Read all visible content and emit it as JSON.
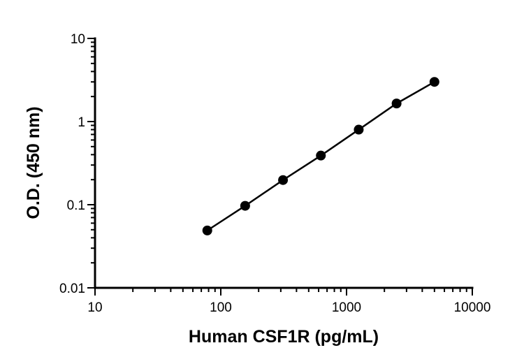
{
  "chart_data": {
    "type": "scatter",
    "title": "",
    "xlabel": "Human CSF1R (pg/mL)",
    "ylabel": "O.D. (450 nm)",
    "xscale": "log",
    "yscale": "log",
    "xlim": [
      10,
      10000
    ],
    "ylim": [
      0.01,
      10
    ],
    "xticks": [
      10,
      100,
      1000,
      10000
    ],
    "xtick_labels": [
      "10",
      "100",
      "1000",
      "10000"
    ],
    "yticks": [
      0.01,
      0.1,
      1,
      10
    ],
    "ytick_labels": [
      "0.01",
      "0.1",
      "1",
      "10"
    ],
    "grid": false,
    "legend": "none",
    "color": "#000000",
    "series": [
      {
        "x": [
          78.125,
          156.25,
          312.5,
          625,
          1250,
          2500,
          5000
        ],
        "y": [
          0.049,
          0.097,
          0.198,
          0.39,
          0.8,
          1.65,
          3.0
        ]
      }
    ]
  }
}
